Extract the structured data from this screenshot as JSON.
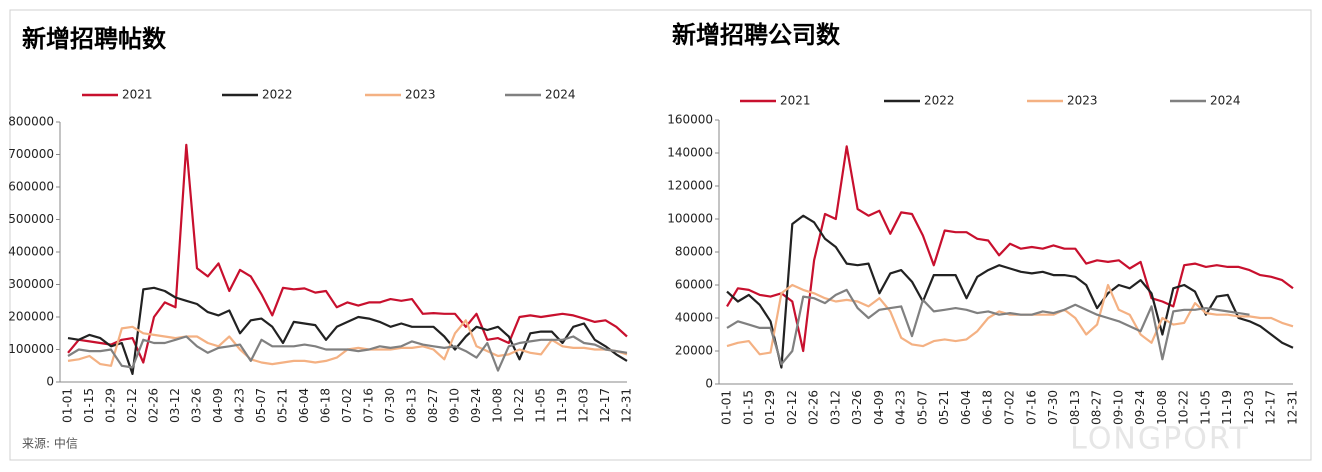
{
  "source": "来源: 中信",
  "watermark": "LONGPORT",
  "chart_data": [
    {
      "type": "line",
      "title": "新增招聘帖数",
      "categories": [
        "01-01",
        null,
        "01-15",
        null,
        "01-29",
        null,
        "02-12",
        null,
        "02-26",
        null,
        "03-12",
        null,
        "03-26",
        null,
        "04-09",
        null,
        "04-23",
        null,
        "05-07",
        null,
        "05-21",
        null,
        "06-04",
        null,
        "06-18",
        null,
        "07-02",
        null,
        "07-16",
        null,
        "07-30",
        null,
        "08-13",
        null,
        "08-27",
        null,
        "09-10",
        null,
        "09-24",
        null,
        "10-08",
        null,
        "10-22",
        null,
        "11-05",
        null,
        "11-19",
        null,
        "12-03",
        null,
        "12-17",
        null,
        "12-31"
      ],
      "ylim": [
        0,
        800000
      ],
      "yticks": [
        0,
        100000,
        200000,
        300000,
        400000,
        500000,
        600000,
        700000,
        800000
      ],
      "series": [
        {
          "name": "2021",
          "color": "#c8102e",
          "values": [
            90000,
            130000,
            125000,
            120000,
            115000,
            130000,
            135000,
            60000,
            200000,
            245000,
            230000,
            730000,
            350000,
            325000,
            365000,
            280000,
            345000,
            325000,
            270000,
            205000,
            290000,
            285000,
            288000,
            275000,
            280000,
            230000,
            245000,
            235000,
            245000,
            245000,
            255000,
            250000,
            255000,
            210000,
            212000,
            210000,
            210000,
            170000,
            210000,
            130000,
            135000,
            120000,
            200000,
            205000,
            200000,
            205000,
            210000,
            205000,
            195000,
            185000,
            190000,
            170000,
            140000
          ]
        },
        {
          "name": "2022",
          "color": "#222222",
          "values": [
            135000,
            130000,
            145000,
            135000,
            110000,
            120000,
            25000,
            285000,
            290000,
            280000,
            260000,
            250000,
            240000,
            215000,
            205000,
            220000,
            150000,
            190000,
            195000,
            170000,
            120000,
            185000,
            180000,
            175000,
            130000,
            170000,
            185000,
            200000,
            195000,
            185000,
            170000,
            180000,
            170000,
            170000,
            170000,
            140000,
            100000,
            140000,
            170000,
            160000,
            170000,
            140000,
            70000,
            150000,
            155000,
            155000,
            120000,
            170000,
            180000,
            130000,
            110000,
            85000,
            65000
          ]
        },
        {
          "name": "2023",
          "color": "#f4b183",
          "values": [
            65000,
            70000,
            80000,
            55000,
            50000,
            165000,
            170000,
            150000,
            145000,
            140000,
            135000,
            140000,
            140000,
            120000,
            110000,
            140000,
            100000,
            70000,
            60000,
            55000,
            60000,
            65000,
            65000,
            60000,
            65000,
            75000,
            100000,
            105000,
            100000,
            100000,
            100000,
            105000,
            105000,
            110000,
            100000,
            70000,
            150000,
            190000,
            110000,
            95000,
            80000,
            85000,
            100000,
            90000,
            85000,
            130000,
            110000,
            105000,
            105000,
            100000,
            100000,
            95000,
            85000
          ]
        },
        {
          "name": "2024",
          "color": "#808080",
          "values": [
            80000,
            100000,
            95000,
            95000,
            100000,
            50000,
            45000,
            130000,
            120000,
            120000,
            130000,
            140000,
            110000,
            90000,
            105000,
            110000,
            115000,
            65000,
            130000,
            110000,
            110000,
            110000,
            115000,
            110000,
            100000,
            100000,
            100000,
            95000,
            100000,
            110000,
            105000,
            110000,
            125000,
            115000,
            110000,
            105000,
            110000,
            95000,
            75000,
            120000,
            35000,
            110000,
            120000,
            125000,
            130000,
            130000,
            130000,
            140000,
            120000,
            115000,
            100000,
            95000,
            90000
          ]
        }
      ]
    },
    {
      "type": "line",
      "title": "新增招聘公司数",
      "categories": [
        "01-01",
        null,
        "01-15",
        null,
        "01-29",
        null,
        "02-12",
        null,
        "02-26",
        null,
        "03-12",
        null,
        "03-26",
        null,
        "04-09",
        null,
        "04-23",
        null,
        "05-07",
        null,
        "05-21",
        null,
        "06-04",
        null,
        "06-18",
        null,
        "07-02",
        null,
        "07-16",
        null,
        "07-30",
        null,
        "08-13",
        null,
        "08-27",
        null,
        "09-10",
        null,
        "09-24",
        null,
        "10-08",
        null,
        "10-22",
        null,
        "11-05",
        null,
        "11-19",
        null,
        "12-03",
        null,
        "12-17",
        null,
        "12-31"
      ],
      "ylim": [
        0,
        160000
      ],
      "yticks": [
        0,
        20000,
        40000,
        60000,
        80000,
        100000,
        120000,
        140000,
        160000
      ],
      "series": [
        {
          "name": "2021",
          "color": "#c8102e",
          "values": [
            47000,
            58000,
            57000,
            54000,
            53000,
            55000,
            50000,
            20000,
            75000,
            103000,
            100000,
            144000,
            106000,
            102000,
            105000,
            91000,
            104000,
            103000,
            90000,
            72000,
            93000,
            92000,
            92000,
            88000,
            87000,
            78000,
            85000,
            82000,
            83000,
            82000,
            84000,
            82000,
            82000,
            73000,
            75000,
            74000,
            75000,
            70000,
            74000,
            52000,
            50000,
            47000,
            72000,
            73000,
            71000,
            72000,
            71000,
            71000,
            69000,
            66000,
            65000,
            63000,
            58000
          ]
        },
        {
          "name": "2022",
          "color": "#222222",
          "values": [
            56000,
            50000,
            54000,
            48000,
            38000,
            10000,
            97000,
            102000,
            98000,
            88000,
            83000,
            73000,
            72000,
            73000,
            55000,
            67000,
            69000,
            62000,
            50000,
            66000,
            66000,
            66000,
            52000,
            65000,
            69000,
            72000,
            70000,
            68000,
            67000,
            68000,
            66000,
            66000,
            65000,
            60000,
            46000,
            55000,
            60000,
            58000,
            63000,
            55000,
            30000,
            58000,
            60000,
            56000,
            42000,
            53000,
            54000,
            40000,
            38000,
            35000,
            30000,
            25000,
            22000
          ]
        },
        {
          "name": "2023",
          "color": "#f4b183",
          "values": [
            23000,
            25000,
            26000,
            18000,
            19000,
            55000,
            60000,
            57000,
            55000,
            52000,
            50000,
            51000,
            50000,
            47000,
            52000,
            44000,
            28000,
            24000,
            23000,
            26000,
            27000,
            26000,
            27000,
            32000,
            40000,
            44000,
            42000,
            42000,
            42000,
            42000,
            42000,
            45000,
            40000,
            30000,
            36000,
            60000,
            45000,
            42000,
            30000,
            25000,
            40000,
            36000,
            37000,
            49000,
            43000,
            42000,
            42000,
            41000,
            41000,
            40000,
            40000,
            37000,
            35000
          ]
        },
        {
          "name": "2024",
          "color": "#808080",
          "values": [
            34000,
            38000,
            36000,
            34000,
            34000,
            12000,
            20000,
            53000,
            52000,
            49000,
            54000,
            57000,
            46000,
            40000,
            45000,
            46000,
            47000,
            29000,
            51000,
            44000,
            45000,
            46000,
            45000,
            43000,
            44000,
            42000,
            43000,
            42000,
            42000,
            44000,
            43000,
            45000,
            48000,
            45000,
            42000,
            40000,
            38000,
            35000,
            32000,
            47000,
            15000,
            44000,
            45000,
            45000,
            46000,
            45000,
            44000,
            43000,
            42000,
            null,
            null,
            null,
            null
          ]
        }
      ]
    }
  ]
}
